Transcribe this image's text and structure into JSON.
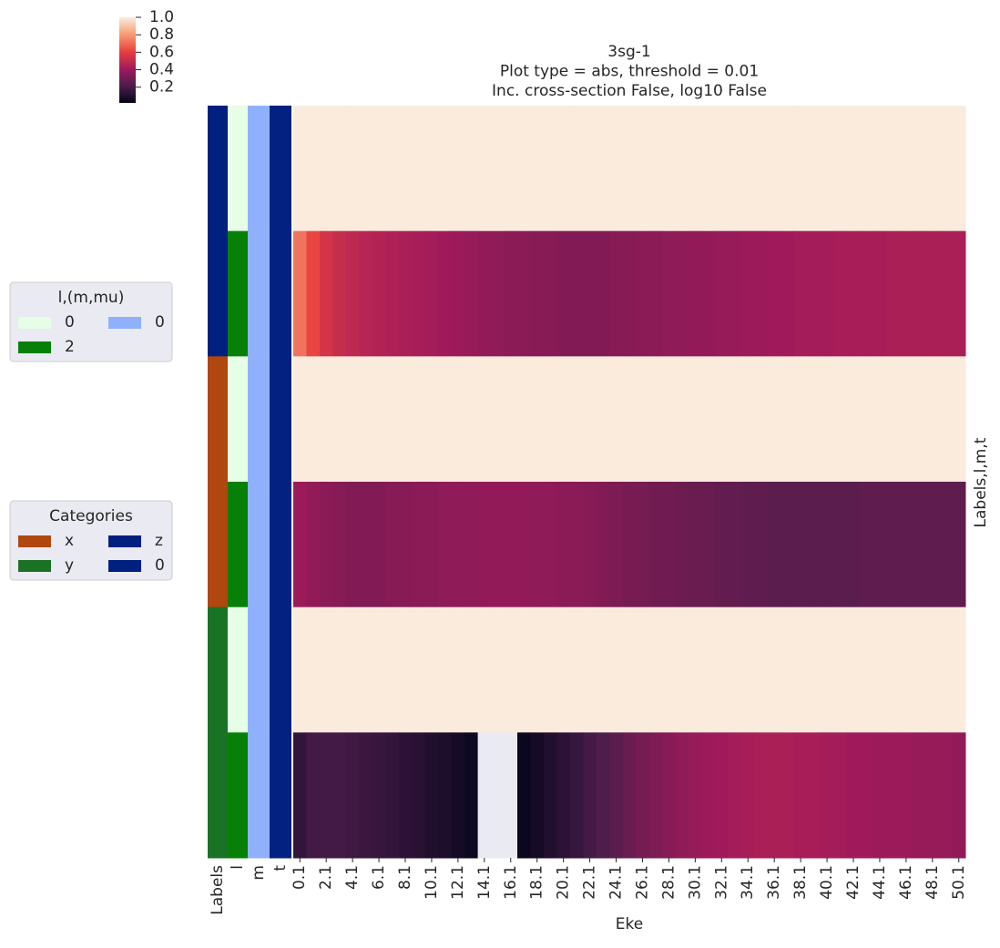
{
  "chart_data": {
    "type": "heatmap",
    "title": [
      "3sg-1",
      "Plot type = abs, threshold = 0.01",
      "Inc. cross-section False, log10 False"
    ],
    "xlabel": "Eke",
    "ylabel": "Labels,l,m,t",
    "colormap": "rocket",
    "missing_color": "#eaeaf2",
    "categories": [
      "0.1",
      null,
      "2.1",
      null,
      "4.1",
      null,
      "6.1",
      null,
      "8.1",
      null,
      "10.1",
      null,
      "12.1",
      null,
      "14.1",
      null,
      "16.1",
      null,
      "18.1",
      null,
      "20.1",
      null,
      "22.1",
      null,
      "24.1",
      null,
      "26.1",
      null,
      "28.1",
      null,
      "30.1",
      null,
      "32.1",
      null,
      "34.1",
      null,
      "36.1",
      null,
      "38.1",
      null,
      "40.1",
      null,
      "42.1",
      null,
      "44.1",
      null,
      "46.1",
      null,
      "48.1",
      null,
      "50.1"
    ],
    "rows": [
      {
        "values": [
          1,
          1,
          1,
          1,
          1,
          1,
          1,
          1,
          1,
          1,
          1,
          1,
          1,
          1,
          1,
          1,
          1,
          1,
          1,
          1,
          1,
          1,
          1,
          1,
          1,
          1,
          1,
          1,
          1,
          1,
          1,
          1,
          1,
          1,
          1,
          1,
          1,
          1,
          1,
          1,
          1,
          1,
          1,
          1,
          1,
          1,
          1,
          1,
          1,
          1,
          1
        ]
      },
      {
        "values": [
          0.72,
          0.62,
          0.55,
          0.51,
          0.49,
          0.47,
          0.46,
          0.45,
          0.44,
          0.43,
          0.42,
          0.41,
          0.4,
          0.39,
          0.38,
          0.37,
          0.36,
          0.36,
          0.35,
          0.35,
          0.34,
          0.34,
          0.34,
          0.34,
          0.35,
          0.35,
          0.36,
          0.36,
          0.37,
          0.37,
          0.38,
          0.38,
          0.39,
          0.39,
          0.4,
          0.4,
          0.41,
          0.41,
          0.42,
          0.42,
          0.42,
          0.43,
          0.43,
          0.43,
          0.43,
          0.44,
          0.44,
          0.44,
          0.44,
          0.44,
          0.44
        ]
      },
      {
        "values": [
          1,
          1,
          1,
          1,
          1,
          1,
          1,
          1,
          1,
          1,
          1,
          1,
          1,
          1,
          1,
          1,
          1,
          1,
          1,
          1,
          1,
          1,
          1,
          1,
          1,
          1,
          1,
          1,
          1,
          1,
          1,
          1,
          1,
          1,
          1,
          1,
          1,
          1,
          1,
          1,
          1,
          1,
          1,
          1,
          1,
          1,
          1,
          1,
          1,
          1,
          1
        ]
      },
      {
        "values": [
          0.4,
          0.38,
          0.36,
          0.35,
          0.34,
          0.34,
          0.34,
          0.35,
          0.35,
          0.36,
          0.36,
          0.37,
          0.37,
          0.37,
          0.38,
          0.38,
          0.38,
          0.38,
          0.37,
          0.37,
          0.36,
          0.36,
          0.35,
          0.34,
          0.33,
          0.32,
          0.31,
          0.3,
          0.3,
          0.29,
          0.28,
          0.28,
          0.27,
          0.27,
          0.26,
          0.26,
          0.25,
          0.25,
          0.25,
          0.25,
          0.25,
          0.25,
          0.25,
          0.26,
          0.26,
          0.26,
          0.26,
          0.26,
          0.26,
          0.26,
          0.26
        ]
      },
      {
        "values": [
          1,
          1,
          1,
          1,
          1,
          1,
          1,
          1,
          1,
          1,
          1,
          1,
          1,
          1,
          1,
          1,
          1,
          1,
          1,
          1,
          1,
          1,
          1,
          1,
          1,
          1,
          1,
          1,
          1,
          1,
          1,
          1,
          1,
          1,
          1,
          1,
          1,
          1,
          1,
          1,
          1,
          1,
          1,
          1,
          1,
          1,
          1,
          1,
          1,
          1,
          1
        ]
      },
      {
        "values": [
          0.15,
          0.19,
          0.19,
          0.19,
          0.18,
          0.17,
          0.16,
          0.15,
          0.13,
          0.12,
          0.1,
          0.09,
          0.07,
          0.05,
          null,
          null,
          null,
          0.04,
          0.07,
          0.1,
          0.13,
          0.16,
          0.19,
          0.22,
          0.25,
          0.28,
          0.31,
          0.33,
          0.35,
          0.37,
          0.39,
          0.4,
          0.41,
          0.42,
          0.43,
          0.44,
          0.44,
          0.44,
          0.43,
          0.43,
          0.42,
          0.42,
          0.41,
          0.41,
          0.4,
          0.4,
          0.4,
          0.39,
          0.39,
          0.39,
          0.38
        ]
      }
    ],
    "side_colors": [
      {
        "label": "Labels",
        "colors": [
          "#00207f",
          "#00207f",
          "#b0470e",
          "#b0470e",
          "#1a7225",
          "#1a7225"
        ]
      },
      {
        "label": "l",
        "colors": [
          "#e6fde6",
          "#078007",
          "#e6fde6",
          "#078007",
          "#e6fde6",
          "#078007"
        ]
      },
      {
        "label": "m",
        "colors": [
          "#8fb1fc",
          "#8fb1fc",
          "#8fb1fc",
          "#8fb1fc",
          "#8fb1fc",
          "#8fb1fc"
        ]
      },
      {
        "label": "t",
        "colors": [
          "#022181",
          "#022181",
          "#022181",
          "#022181",
          "#022181",
          "#022181"
        ]
      }
    ],
    "clim": [
      0.02,
      1.0
    ],
    "cticks": [
      0.2,
      0.4,
      0.6,
      0.8,
      {
        "value": 1.0,
        "label": "1.0"
      }
    ],
    "legends": [
      {
        "title": "l,(m,mu)",
        "entries": [
          {
            "name": "0",
            "color": "#e6fde6"
          },
          {
            "name": "2",
            "color": "#078007"
          },
          {
            "name": "0",
            "color": "#8fb1fc"
          }
        ]
      },
      {
        "title": "Categories",
        "entries": [
          {
            "name": "x",
            "color": "#b0470e"
          },
          {
            "name": "y",
            "color": "#1a7225"
          },
          {
            "name": "z",
            "color": "#00207f"
          },
          {
            "name": "0",
            "color": "#00207f"
          }
        ]
      }
    ]
  }
}
